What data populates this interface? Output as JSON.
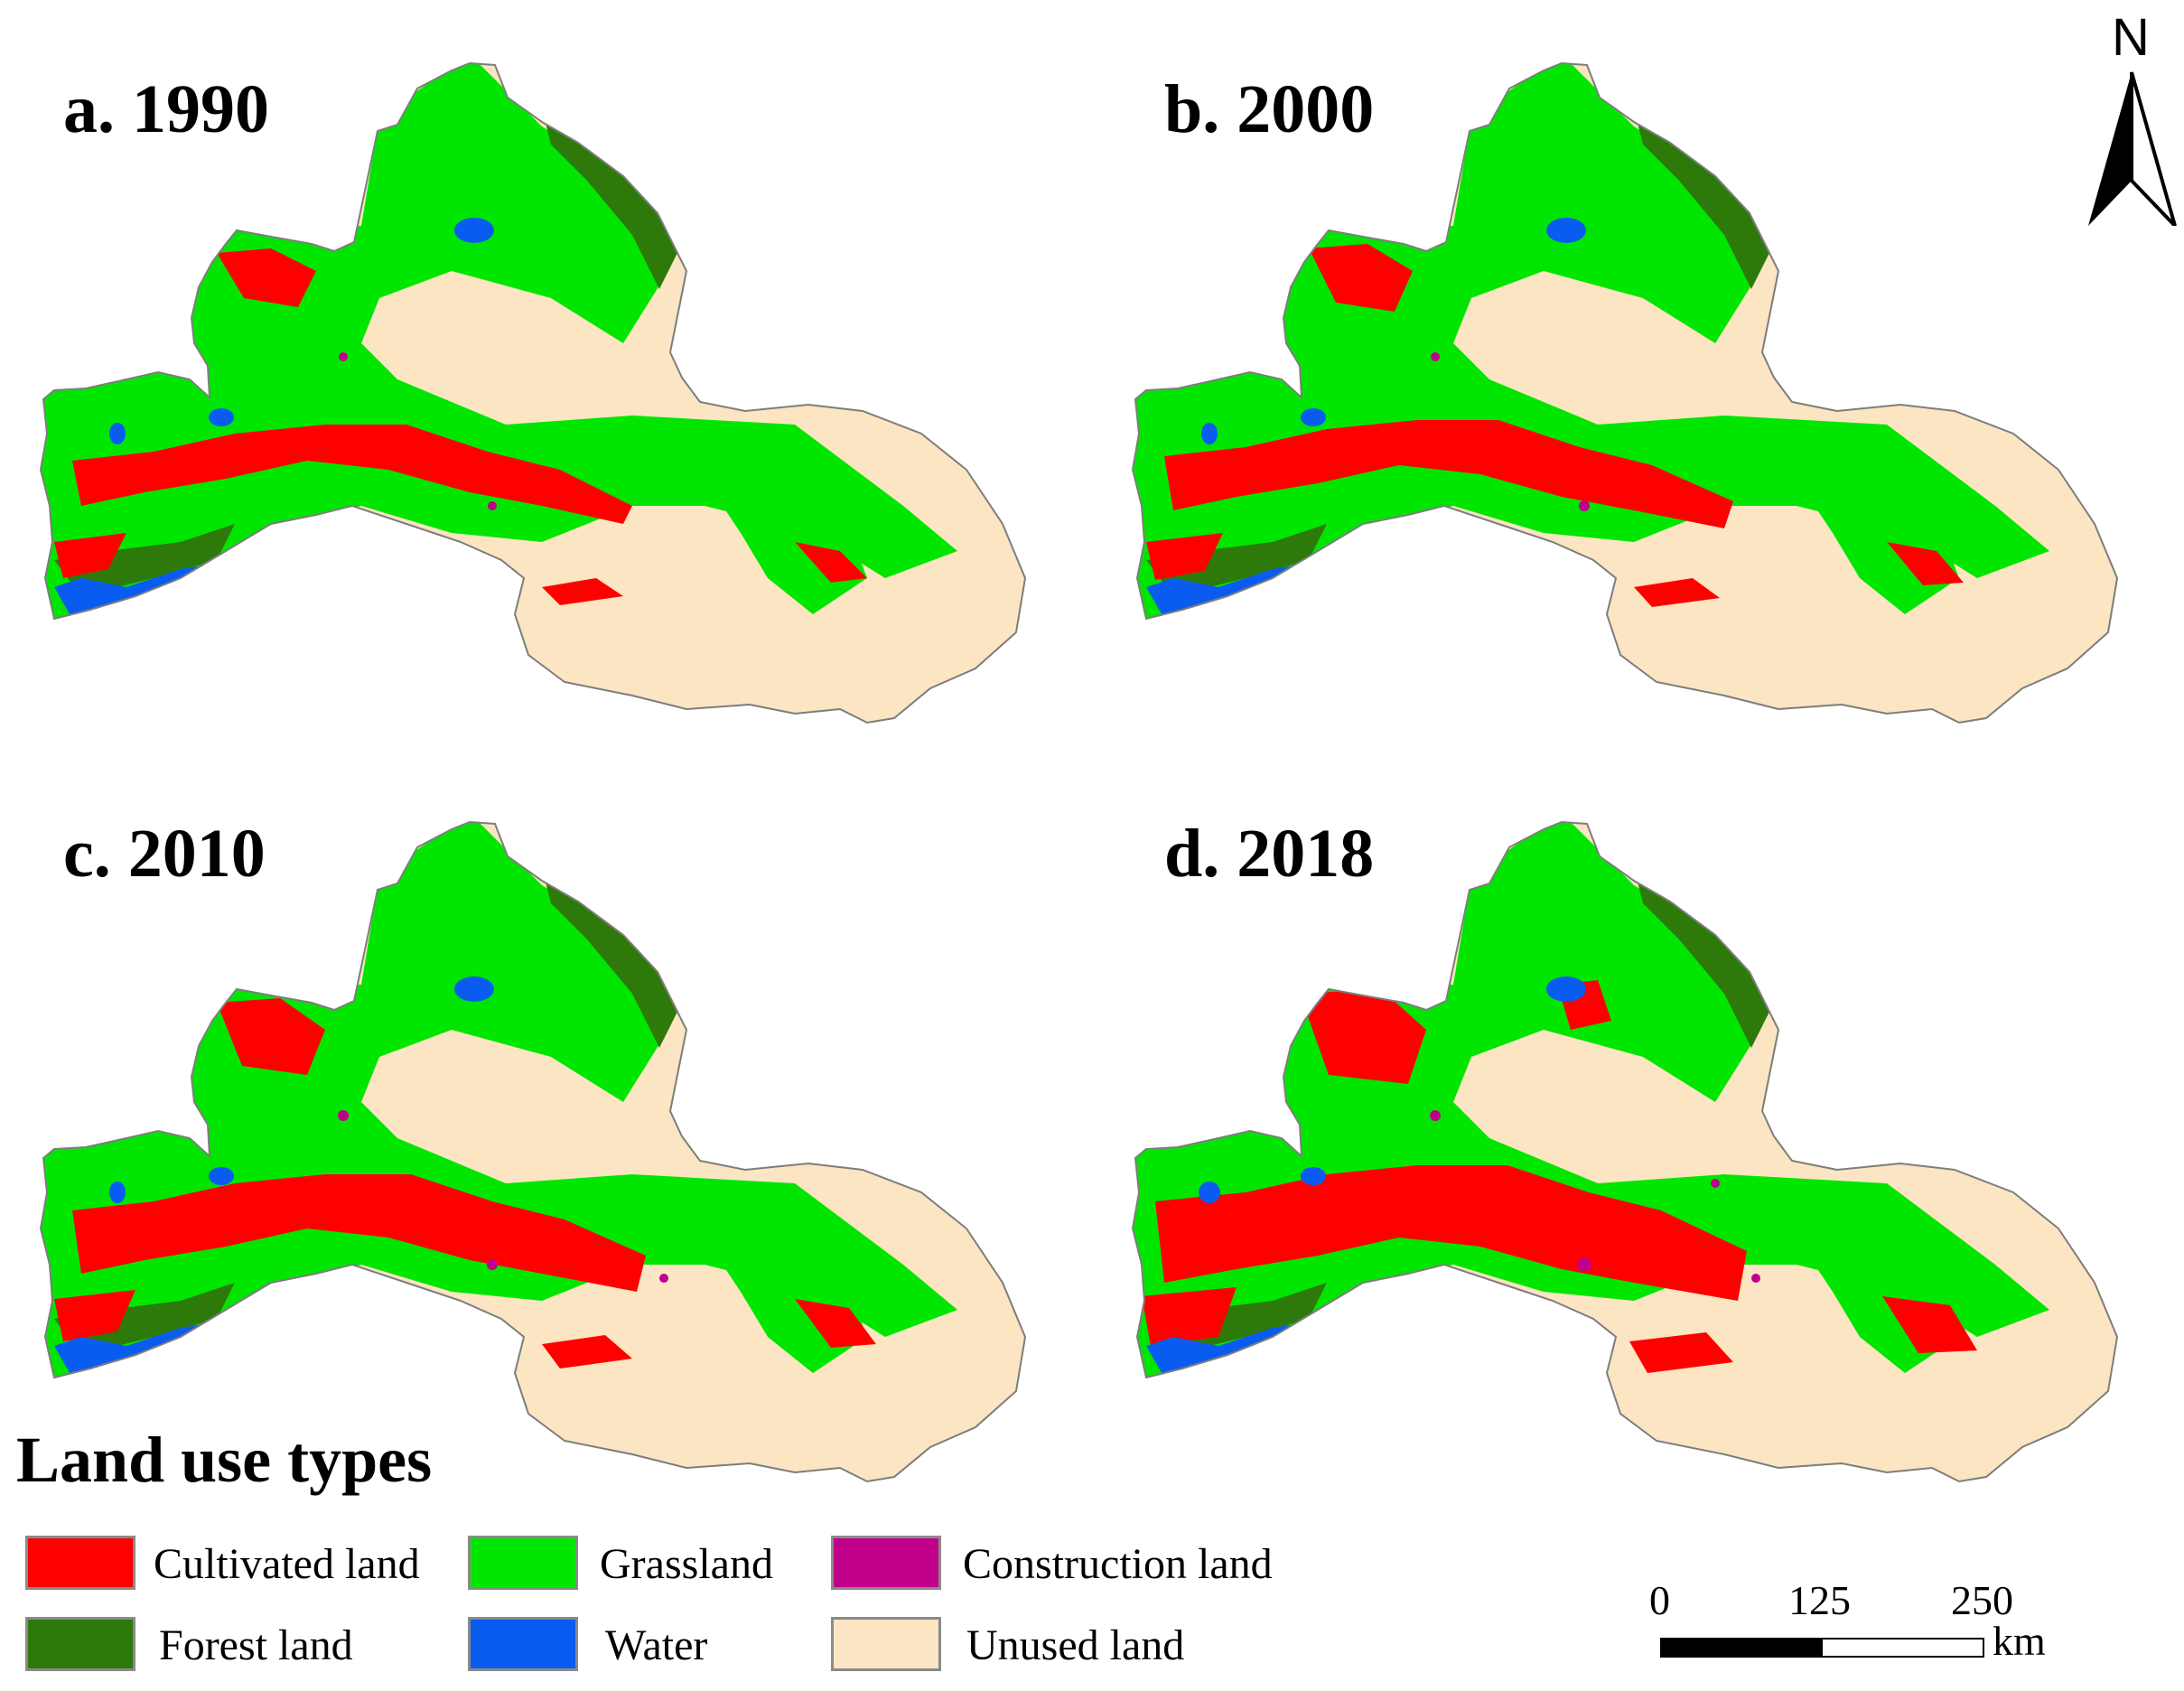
{
  "panels": [
    {
      "id": "a",
      "label": "a. 1990"
    },
    {
      "id": "b",
      "label": "b. 2000"
    },
    {
      "id": "c",
      "label": "c. 2010"
    },
    {
      "id": "d",
      "label": "d. 2018"
    }
  ],
  "north_arrow": {
    "letter": "N"
  },
  "legend": {
    "title": "Land use types",
    "items": [
      {
        "label": "Cultivated land",
        "color": "#ff0000"
      },
      {
        "label": "Grassland",
        "color": "#00e600"
      },
      {
        "label": "Construction land",
        "color": "#c0008a"
      },
      {
        "label": "Forest land",
        "color": "#2d7a0a"
      },
      {
        "label": "Water",
        "color": "#0a5cf0"
      },
      {
        "label": "Unused land",
        "color": "#fbe5c2"
      }
    ]
  },
  "scale_bar": {
    "ticks": [
      "0",
      "125",
      "250"
    ],
    "unit": "km"
  },
  "colors": {
    "cultivated": "#ff0000",
    "grassland": "#00e600",
    "construction": "#c0008a",
    "forest": "#2d7a0a",
    "water": "#0a5cf0",
    "unused": "#fbe5c2",
    "outline": "#7d7d7d"
  }
}
